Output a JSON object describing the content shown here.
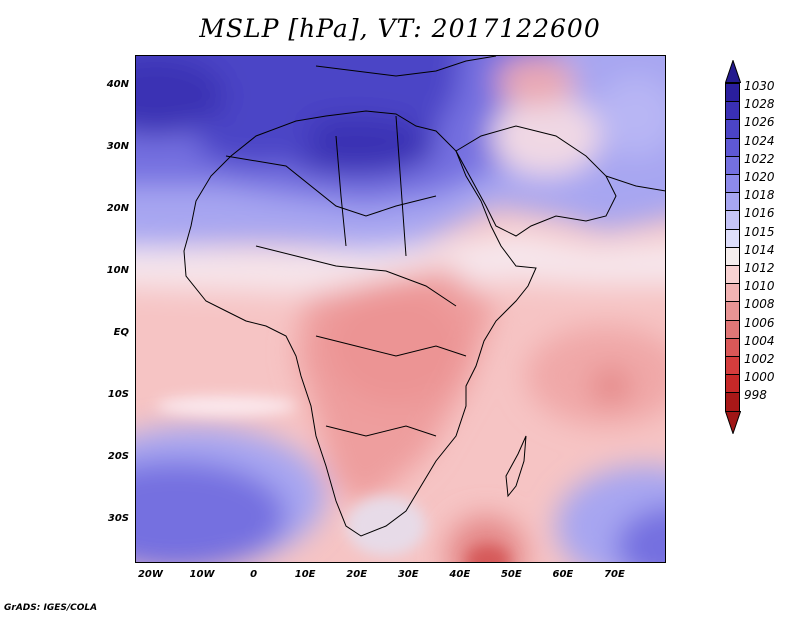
{
  "title": "MSLP [hPa], VT: 2017122600",
  "credit": "GrADS: IGES/COLA",
  "map": {
    "variable": "Mean sea level pressure",
    "units": "hPa",
    "valid_time": "2017122600",
    "lon_range": [
      -23,
      80
    ],
    "lat_range": [
      -37,
      45
    ],
    "lat_ticks": [
      {
        "value": 40,
        "label": "40N"
      },
      {
        "value": 30,
        "label": "30N"
      },
      {
        "value": 20,
        "label": "20N"
      },
      {
        "value": 10,
        "label": "10N"
      },
      {
        "value": 0,
        "label": "EQ"
      },
      {
        "value": -10,
        "label": "10S"
      },
      {
        "value": -20,
        "label": "20S"
      },
      {
        "value": -30,
        "label": "30S"
      }
    ],
    "lon_ticks": [
      {
        "value": -20,
        "label": "20W"
      },
      {
        "value": -10,
        "label": "10W"
      },
      {
        "value": 0,
        "label": "0"
      },
      {
        "value": 10,
        "label": "10E"
      },
      {
        "value": 20,
        "label": "20E"
      },
      {
        "value": 30,
        "label": "30E"
      },
      {
        "value": 40,
        "label": "40E"
      },
      {
        "value": 50,
        "label": "50E"
      },
      {
        "value": 60,
        "label": "60E"
      },
      {
        "value": 70,
        "label": "70E"
      }
    ]
  },
  "colorbar": {
    "levels": [
      "1030",
      "1028",
      "1026",
      "1024",
      "1022",
      "1020",
      "1018",
      "1016",
      "1015",
      "1014",
      "1012",
      "1010",
      "1008",
      "1006",
      "1004",
      "1002",
      "1000",
      "998"
    ],
    "colors": [
      "#2a1e9e",
      "#3a30b4",
      "#4b44c6",
      "#5e58d4",
      "#7470e0",
      "#8d8aea",
      "#a7a6f1",
      "#c4c3f7",
      "#dedefb",
      "#f5eded",
      "#f8d2d2",
      "#f2b3b3",
      "#e89494",
      "#e07676",
      "#da5858",
      "#d43d3d",
      "#c62828",
      "#a81818"
    ],
    "top_arrow_color": "#241a8e",
    "bottom_arrow_color": "#a01616"
  }
}
